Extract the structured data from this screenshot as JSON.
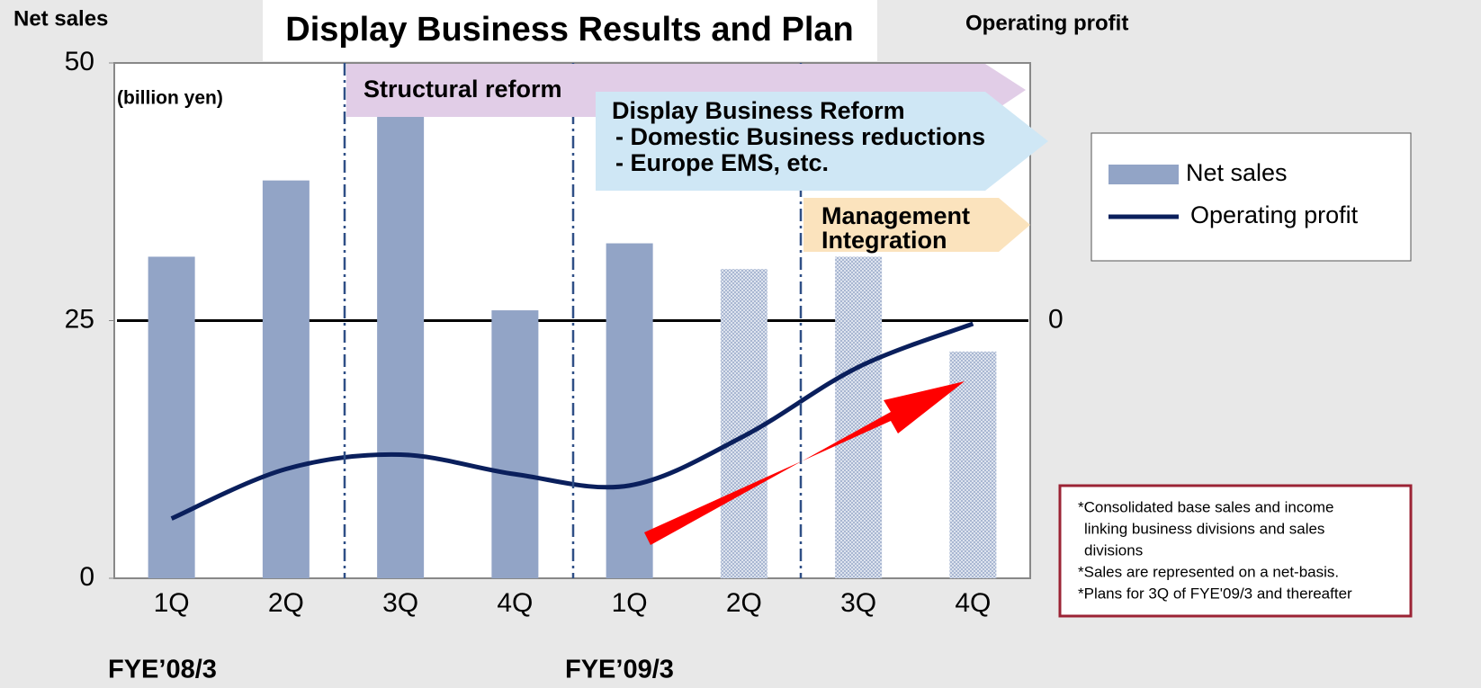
{
  "chart_data": {
    "type": "bar_line",
    "title": "Display Business Results and Plan",
    "y_axis_label": "Net sales",
    "y2_axis_label": "Operating profit",
    "unit_label": "(billion yen)",
    "categories": [
      "1Q",
      "2Q",
      "3Q",
      "4Q",
      "1Q",
      "2Q",
      "3Q",
      "4Q"
    ],
    "groups": [
      "FYE’08/3",
      "FYE’09/3"
    ],
    "series": [
      {
        "name": "Net sales",
        "type": "bar",
        "color": "#92a4c6",
        "values": [
          31.2,
          38.6,
          46,
          26,
          32.5,
          30,
          31.2,
          22
        ],
        "hatched": [
          false,
          false,
          false,
          false,
          false,
          true,
          true,
          true
        ]
      },
      {
        "name": "Operating profit",
        "type": "line",
        "axis": "y2",
        "color": "#0a1f5c",
        "values": [
          -19.2,
          -14.4,
          -13,
          -14.9,
          -16,
          -11.2,
          -4.5,
          -0.3
        ]
      }
    ],
    "ylim": [
      0,
      50
    ],
    "yticks": [
      0,
      25,
      50
    ],
    "y2lim": [
      -25,
      25
    ],
    "y2ticks": [
      0
    ],
    "annotations": {
      "structural_reform": "Structural reform",
      "display_reform": [
        "Display Business Reform",
        "- Domestic Business reductions",
        "- Europe EMS, etc."
      ],
      "management_integration": [
        "Management",
        "Integration"
      ]
    },
    "notes": [
      "*Consolidated base sales and income",
      "linking business divisions and sales",
      "divisions",
      "*Sales are represented on a net-basis.",
      "*Plans for 3Q of FYE'09/3 and thereafter"
    ]
  }
}
